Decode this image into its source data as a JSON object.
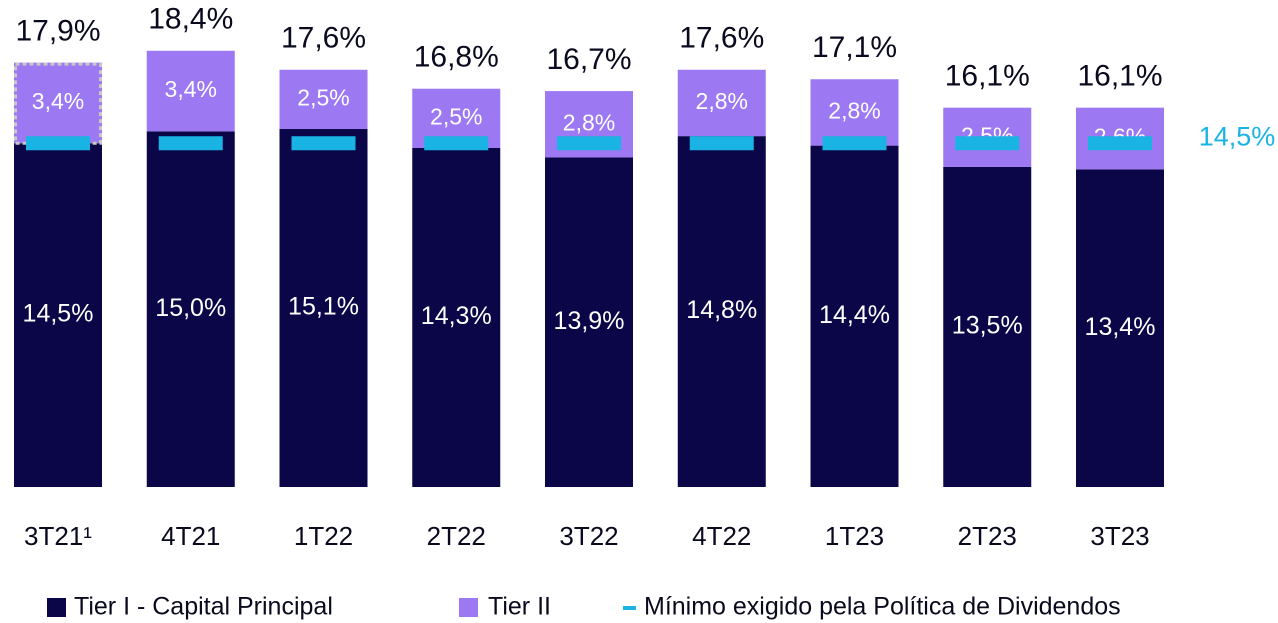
{
  "chart_data": {
    "type": "stacked-bar",
    "categories": [
      "3T21¹",
      "4T21",
      "1T22",
      "2T22",
      "3T22",
      "4T22",
      "1T23",
      "2T23",
      "3T23"
    ],
    "series": [
      {
        "name": "Tier I - Capital Principal",
        "color": "#0b0648",
        "values": [
          14.5,
          15.0,
          15.1,
          14.3,
          13.9,
          14.8,
          14.4,
          13.5,
          13.4
        ],
        "value_labels": [
          "14,5%",
          "15,0%",
          "15,1%",
          "14,3%",
          "13,9%",
          "14,8%",
          "14,4%",
          "13,5%",
          "13,4%"
        ]
      },
      {
        "name": "Tier II",
        "color": "#9c78f2",
        "values": [
          3.4,
          3.4,
          2.5,
          2.5,
          2.8,
          2.8,
          2.8,
          2.5,
          2.6
        ],
        "value_labels": [
          "3,4%",
          "3,4%",
          "2,5%",
          "2,5%",
          "2,8%",
          "2,8%",
          "2,8%",
          "2,5%",
          "2,6%"
        ]
      }
    ],
    "totals": {
      "values": [
        17.9,
        18.4,
        17.6,
        16.8,
        16.7,
        17.6,
        17.1,
        16.1,
        16.1
      ],
      "value_labels": [
        "17,9%",
        "18,4%",
        "17,6%",
        "16,8%",
        "16,7%",
        "17,6%",
        "17,1%",
        "16,1%",
        "16,1%"
      ]
    },
    "minimum": {
      "name": "Mínimo exigido pela Política de Dividendos",
      "value": 14.5,
      "value_label": "14,5%",
      "color": "#1ab4e4"
    },
    "ylim": [
      0,
      20.5
    ]
  }
}
